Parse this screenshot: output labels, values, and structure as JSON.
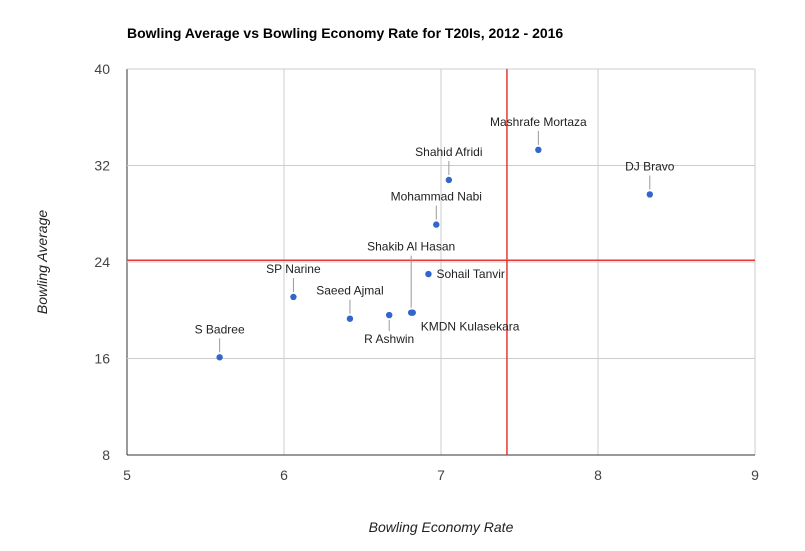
{
  "chart_data": {
    "type": "scatter",
    "title": "Bowling Average vs Bowling Economy Rate for T20Is, 2012 - 2016",
    "xlabel": "Bowling Economy Rate",
    "ylabel": "Bowling Average",
    "xlim": [
      5,
      9
    ],
    "ylim": [
      8,
      40
    ],
    "xticks": [
      "5",
      "6",
      "7",
      "8",
      "9"
    ],
    "yticks": [
      "8",
      "16",
      "24",
      "32",
      "40"
    ],
    "grid": true,
    "point_color": "#3366cc",
    "reference_lines": {
      "color": "#e53935",
      "x": 7.42,
      "y": 24.15
    },
    "points": [
      {
        "label": "S Badree",
        "x": 5.59,
        "y": 16.1
      },
      {
        "label": "SP Narine",
        "x": 6.06,
        "y": 21.1
      },
      {
        "label": "Saeed Ajmal",
        "x": 6.42,
        "y": 19.3
      },
      {
        "label": "R Ashwin",
        "x": 6.67,
        "y": 19.6
      },
      {
        "label": "KMDN Kulasekara",
        "x": 6.82,
        "y": 19.8
      },
      {
        "label": "Shakib Al Hasan",
        "x": 6.81,
        "y": 19.8
      },
      {
        "label": "Sohail Tanvir",
        "x": 6.92,
        "y": 23.0
      },
      {
        "label": "Mohammad Nabi",
        "x": 6.97,
        "y": 27.1
      },
      {
        "label": "Shahid Afridi",
        "x": 7.05,
        "y": 30.8
      },
      {
        "label": "Mashrafe Mortaza",
        "x": 7.62,
        "y": 33.3
      },
      {
        "label": "DJ Bravo",
        "x": 8.33,
        "y": 29.6
      }
    ]
  }
}
